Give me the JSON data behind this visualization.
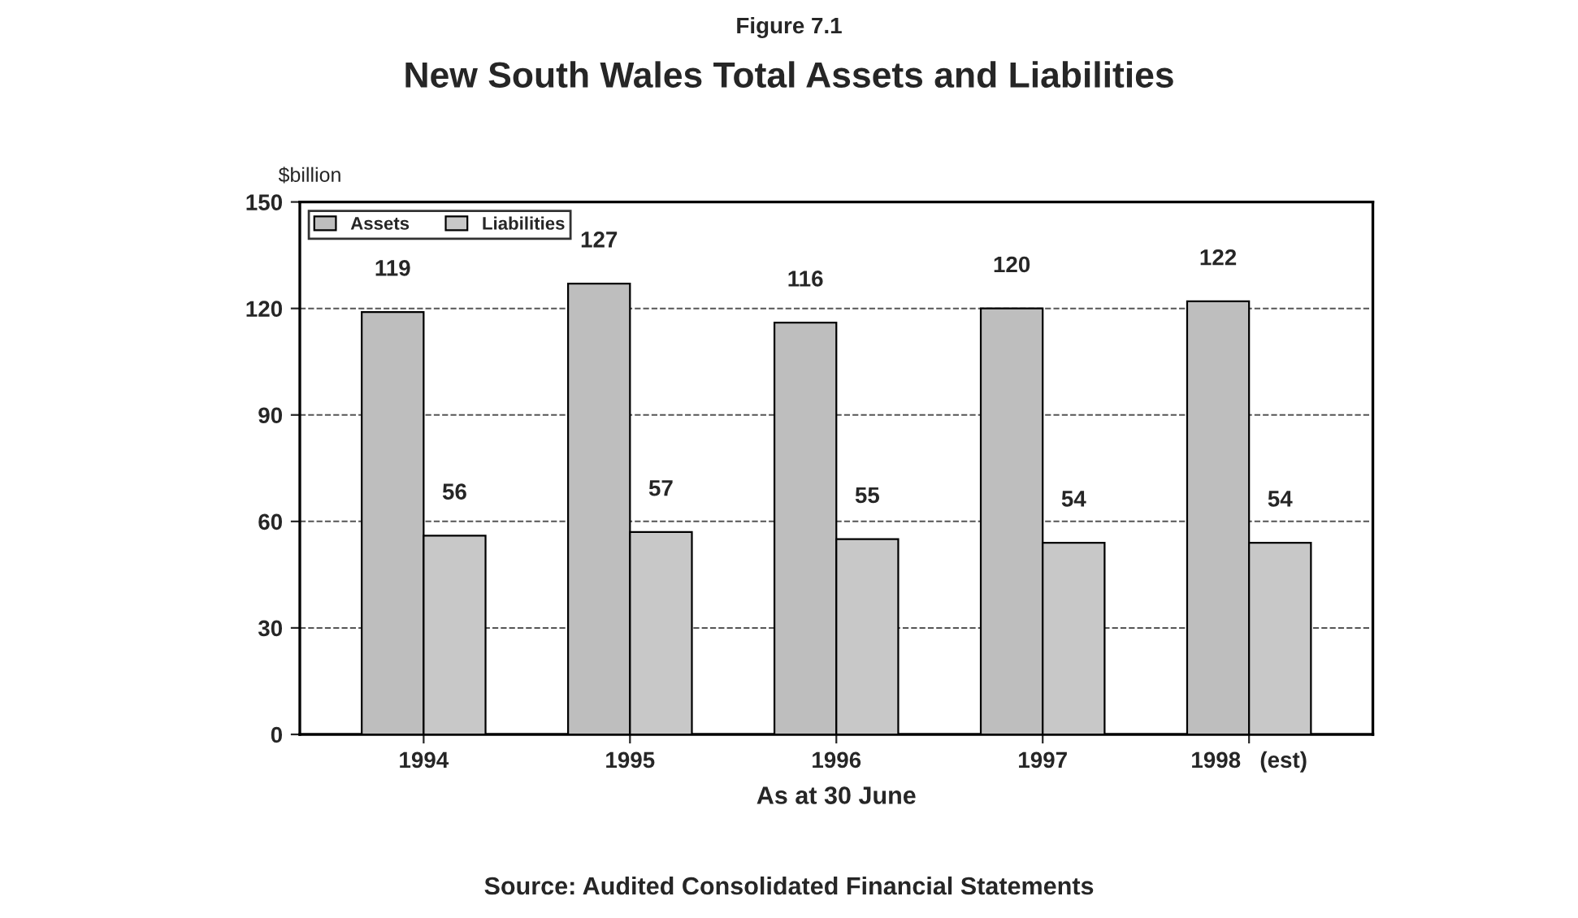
{
  "chart_data": {
    "type": "bar",
    "subtitle": "Figure 7.1",
    "title": "New South Wales Total Assets and Liabilities",
    "ylabel": "$billion",
    "xlabel": "As at 30 June",
    "annotations": [
      "Source: Audited Consolidated Financial Statements"
    ],
    "categories": [
      "1994",
      "1995",
      "1996",
      "1997",
      "1998   (est)"
    ],
    "series": [
      {
        "name": "Assets",
        "color": "#bebebe",
        "values": [
          119,
          127,
          116,
          120,
          122
        ]
      },
      {
        "name": "Liabilities",
        "color": "#c8c8c8",
        "values": [
          56,
          57,
          55,
          54,
          54
        ]
      }
    ],
    "ylim": [
      0,
      150
    ],
    "yticks": [
      0,
      30,
      60,
      90,
      120,
      150
    ],
    "grid": "y",
    "legend": "top left",
    "data_labels": true
  }
}
